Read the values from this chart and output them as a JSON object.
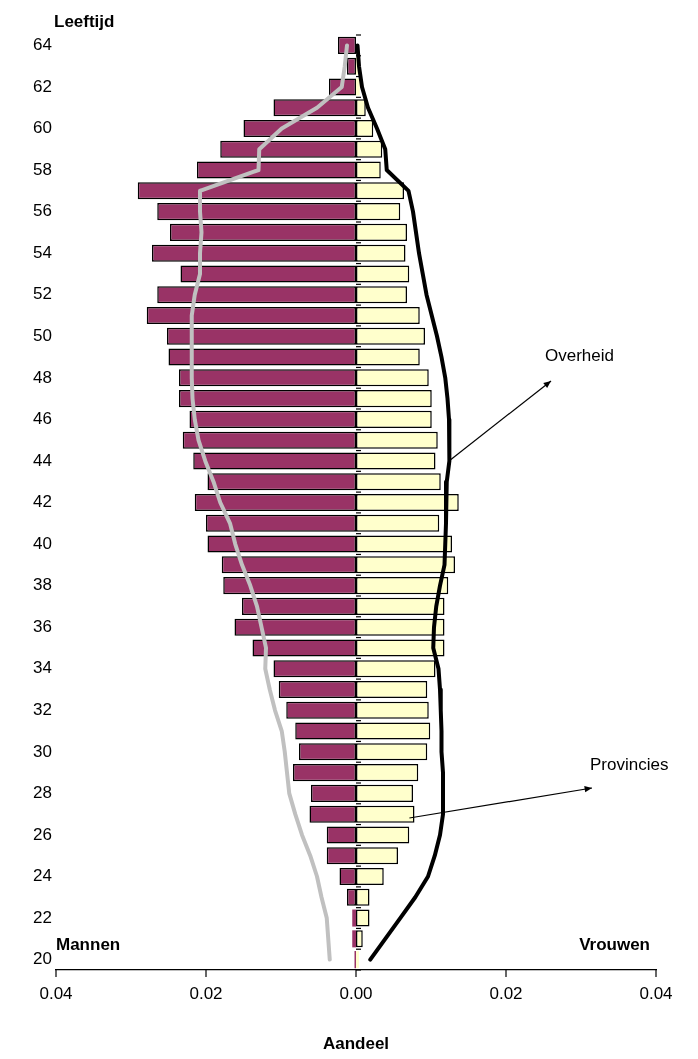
{
  "chart_data": {
    "type": "bar",
    "orientation": "horizontal",
    "stacked": true,
    "xlabel": "Aandeel",
    "ylabel": "Leeftijd",
    "categories": [
      "64",
      null,
      "62",
      null,
      "60",
      null,
      "58",
      null,
      "56",
      null,
      "54",
      null,
      "52",
      null,
      "50",
      null,
      "48",
      null,
      "46",
      null,
      "44",
      null,
      "42",
      null,
      "40",
      null,
      "38",
      null,
      "36",
      null,
      "34",
      null,
      "32",
      null,
      "30",
      null,
      "28",
      null,
      "26",
      null,
      "24",
      null,
      "22",
      null,
      "20"
    ],
    "series": [
      {
        "color": "#993366",
        "values": [
          -0.0024,
          -0.0012,
          -0.0036,
          -0.011,
          -0.015,
          -0.0181,
          -0.0212,
          -0.0291,
          -0.0265,
          -0.0248,
          -0.0272,
          -0.0234,
          -0.0265,
          -0.0279,
          -0.0252,
          -0.025,
          -0.0236,
          -0.0236,
          -0.0222,
          -0.0231,
          -0.0217,
          -0.0198,
          -0.0215,
          -0.02,
          -0.0198,
          -0.0179,
          -0.0177,
          -0.0152,
          -0.0162,
          -0.0138,
          -0.011,
          -0.0103,
          -0.0093,
          -0.0081,
          -0.0076,
          -0.0084,
          -0.006,
          -0.0062,
          -0.0039,
          -0.0039,
          -0.0022,
          -0.0012,
          -0.0005,
          -0.0005,
          -0.0002
        ]
      },
      {
        "color": "#ffffcc",
        "values": [
          null,
          0.0003,
          0.0005,
          0.0013,
          0.0023,
          0.0035,
          0.0033,
          0.0064,
          0.0059,
          0.0068,
          0.0066,
          0.0071,
          0.0068,
          0.0085,
          0.0092,
          0.0085,
          0.0097,
          0.0101,
          0.0101,
          0.0109,
          0.0106,
          0.0113,
          0.0137,
          0.0111,
          0.0128,
          0.0132,
          0.0123,
          0.0118,
          0.0118,
          0.0118,
          0.0106,
          0.0095,
          0.0097,
          0.0099,
          0.0095,
          0.0083,
          0.0076,
          0.0078,
          0.0071,
          0.0056,
          0.0037,
          0.0018,
          0.0018,
          0.0009,
          0.0004
        ]
      },
      {
        "type": "line",
        "color": "#c0c0c0",
        "values": [
          -0.0012,
          -0.0015,
          -0.0019,
          -0.0052,
          -0.0099,
          -0.0129,
          -0.013,
          -0.0208,
          -0.0208,
          -0.0206,
          -0.0208,
          -0.0208,
          -0.0215,
          -0.0219,
          -0.0219,
          -0.0219,
          -0.0219,
          -0.0218,
          -0.0215,
          -0.021,
          -0.0201,
          -0.019,
          -0.0181,
          -0.0168,
          -0.0161,
          -0.0152,
          -0.0141,
          -0.0132,
          -0.0126,
          -0.012,
          -0.0121,
          -0.0115,
          -0.0108,
          -0.0099,
          -0.0095,
          -0.0092,
          -0.0089,
          -0.0081,
          -0.0072,
          -0.0061,
          -0.0052,
          -0.0046,
          -0.0039,
          -0.0037,
          -0.0035
        ]
      },
      {
        "type": "line",
        "color": "#000000",
        "values": [
          0.0002,
          0.0004,
          0.0008,
          0.0016,
          0.0028,
          0.0039,
          0.0041,
          0.007,
          0.0076,
          0.008,
          0.0084,
          0.0089,
          0.0094,
          0.0101,
          0.0108,
          0.0114,
          0.0119,
          0.0122,
          0.0124,
          0.0125,
          0.0124,
          0.0121,
          0.012,
          0.012,
          0.0119,
          0.0118,
          0.0112,
          0.0107,
          0.0104,
          0.0103,
          0.011,
          0.0112,
          0.0113,
          0.0114,
          0.0114,
          0.0116,
          0.0116,
          0.0116,
          0.0112,
          0.0105,
          0.0096,
          0.0079,
          0.0059,
          0.0039,
          0.0019
        ]
      }
    ],
    "marker": "none",
    "line_style": "solid",
    "grid": false,
    "legend": false,
    "xlim": [
      -0.04,
      0.04
    ],
    "xticks": [
      {
        "value": -0.04,
        "label": "0.04"
      },
      {
        "value": -0.02,
        "label": "0.02"
      },
      {
        "value": 0,
        "label": "0.00"
      },
      {
        "value": 0.02,
        "label": "0.02"
      },
      {
        "value": 0.04,
        "label": "0.04"
      }
    ],
    "annotations": [
      "Mannen",
      "Vrouwen",
      {
        "text": "Overheid",
        "x": 0.0124,
        "y": "44"
      },
      "Provincies"
    ]
  }
}
